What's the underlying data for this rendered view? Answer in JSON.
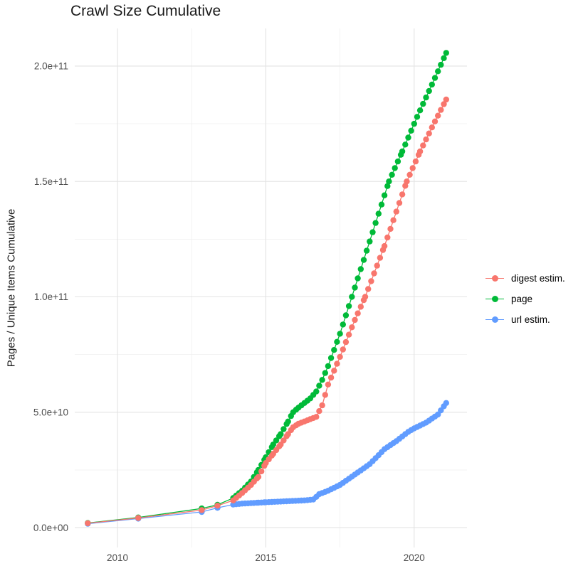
{
  "chart_data": {
    "type": "line-scatter",
    "title": "Crawl Size Cumulative",
    "xlabel": "",
    "ylabel": "Pages / Unique Items Cumulative",
    "legend_position": "right",
    "grid": true,
    "background": "#ffffff",
    "grid_major_color": "#e3e3e3",
    "grid_minor_color": "#efefef",
    "tick_label_color": "#4d4d4d",
    "text_color": "#1a1a1a",
    "xlim": [
      2008.56,
      2021.78
    ],
    "ylim": [
      -8600000000.0,
      216300000000.0
    ],
    "x_ticks": [
      {
        "value": 2010,
        "label": "2010"
      },
      {
        "value": 2015,
        "label": "2015"
      },
      {
        "value": 2020,
        "label": "2020"
      }
    ],
    "x_minor_ticks": [
      2012.5,
      2017.5
    ],
    "y_ticks": [
      {
        "value": 0,
        "label": "0.0e+00"
      },
      {
        "value": 50000000000.0,
        "label": "5.0e+10"
      },
      {
        "value": 100000000000.0,
        "label": "1.0e+11"
      },
      {
        "value": 150000000000.0,
        "label": "1.5e+11"
      },
      {
        "value": 200000000000.0,
        "label": "2.0e+11"
      }
    ],
    "y_minor_ticks": [
      25000000000.0,
      75000000000.0,
      125000000000.0,
      175000000000.0
    ],
    "dot_interval_years": 0.1,
    "dense_dots_from": 2013.9,
    "point_radius": 4.2,
    "series": [
      {
        "name": "digest estim.",
        "color": "#F8766D",
        "points": [
          [
            2009.0,
            1900000000.0
          ],
          [
            2010.7,
            4200000000.0
          ],
          [
            2012.84,
            7600000000.0
          ],
          [
            2013.37,
            9500000000.0
          ],
          [
            2013.9,
            11800000000.0
          ],
          [
            2014.2,
            15000000000.0
          ],
          [
            2014.5,
            18500000000.0
          ],
          [
            2014.75,
            22000000000.0
          ],
          [
            2015.0,
            28000000000.0
          ],
          [
            2015.25,
            32000000000.0
          ],
          [
            2015.5,
            36000000000.0
          ],
          [
            2015.75,
            40500000000.0
          ],
          [
            2015.92,
            43500000000.0
          ],
          [
            2016.1,
            45000000000.0
          ],
          [
            2016.3,
            46000000000.0
          ],
          [
            2016.5,
            47000000000.0
          ],
          [
            2016.7,
            48000000000.0
          ],
          [
            2016.9,
            53000000000.0
          ],
          [
            2017.1,
            62000000000.0
          ],
          [
            2017.5,
            74000000000.0
          ],
          [
            2018.0,
            90000000000.0
          ],
          [
            2018.35,
            100000000000.0
          ],
          [
            2019.0,
            122000000000.0
          ],
          [
            2019.75,
            150000000000.0
          ],
          [
            2020.2,
            163000000000.0
          ],
          [
            2020.7,
            176000000000.0
          ],
          [
            2021.08,
            185500000000.0
          ]
        ]
      },
      {
        "name": "page",
        "color": "#00BA38",
        "points": [
          [
            2009.0,
            2000000000.0
          ],
          [
            2010.7,
            4400000000.0
          ],
          [
            2012.84,
            8300000000.0
          ],
          [
            2013.37,
            9900000000.0
          ],
          [
            2013.9,
            12800000000.0
          ],
          [
            2014.2,
            16000000000.0
          ],
          [
            2014.5,
            20000000000.0
          ],
          [
            2014.75,
            25000000000.0
          ],
          [
            2015.0,
            30500000000.0
          ],
          [
            2015.25,
            36000000000.0
          ],
          [
            2015.5,
            40500000000.0
          ],
          [
            2015.75,
            46000000000.0
          ],
          [
            2015.92,
            50000000000.0
          ],
          [
            2016.1,
            52000000000.0
          ],
          [
            2016.3,
            54000000000.0
          ],
          [
            2016.5,
            56000000000.0
          ],
          [
            2016.7,
            59000000000.0
          ],
          [
            2016.9,
            64000000000.0
          ],
          [
            2017.1,
            70000000000.0
          ],
          [
            2017.5,
            84000000000.0
          ],
          [
            2017.9,
            100000000000.0
          ],
          [
            2018.5,
            124000000000.0
          ],
          [
            2019.15,
            150000000000.0
          ],
          [
            2019.6,
            163000000000.0
          ],
          [
            2020.1,
            178000000000.0
          ],
          [
            2020.6,
            192000000000.0
          ],
          [
            2021.08,
            205700000000.0
          ]
        ]
      },
      {
        "name": "url estim.",
        "color": "#619CFF",
        "points": [
          [
            2009.0,
            1700000000.0
          ],
          [
            2010.7,
            3900000000.0
          ],
          [
            2012.84,
            6800000000.0
          ],
          [
            2013.37,
            8600000000.0
          ],
          [
            2013.9,
            10000000000.0
          ],
          [
            2014.2,
            10400000000.0
          ],
          [
            2014.75,
            10800000000.0
          ],
          [
            2015.0,
            11000000000.0
          ],
          [
            2015.5,
            11300000000.0
          ],
          [
            2016.0,
            11600000000.0
          ],
          [
            2016.3,
            11800000000.0
          ],
          [
            2016.6,
            12200000000.0
          ],
          [
            2016.8,
            14500000000.0
          ],
          [
            2017.1,
            16000000000.0
          ],
          [
            2017.5,
            18500000000.0
          ],
          [
            2018.0,
            23000000000.0
          ],
          [
            2018.5,
            27500000000.0
          ],
          [
            2019.0,
            34000000000.0
          ],
          [
            2019.4,
            37500000000.0
          ],
          [
            2019.8,
            41500000000.0
          ],
          [
            2020.0,
            43000000000.0
          ],
          [
            2020.4,
            45500000000.0
          ],
          [
            2020.8,
            49000000000.0
          ],
          [
            2021.08,
            54000000000.0
          ]
        ]
      }
    ]
  }
}
